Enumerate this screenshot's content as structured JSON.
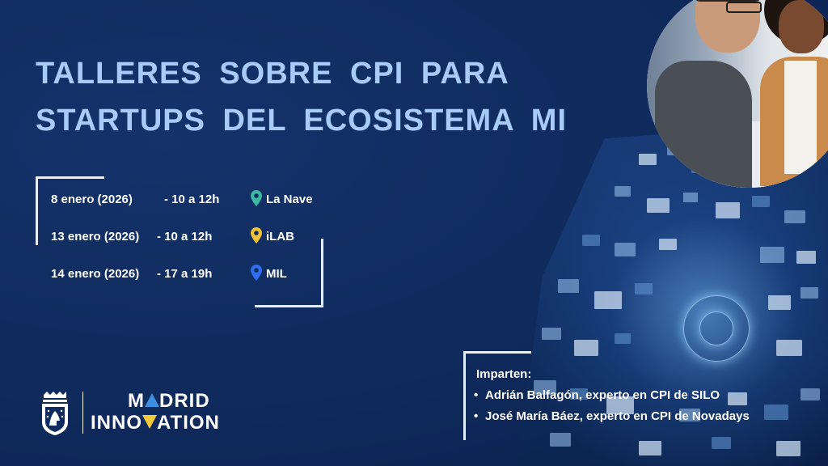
{
  "title": {
    "line1": "TALLERES SOBRE  CPI  PARA",
    "line2": "STARTUPS DEL ECOSISTEMA MI"
  },
  "schedule": [
    {
      "date": "8 enero (2026)",
      "time": "-   10 a 12h",
      "place": "La Nave",
      "pin_color": "#3bb8a0"
    },
    {
      "date": "13 enero (2026)",
      "time": "-  10 a 12h",
      "place": "iLAB",
      "pin_color": "#f0c233"
    },
    {
      "date": "14 enero (2026)",
      "time": "-  17 a 19h",
      "place": "MIL",
      "pin_color": "#2f6ef0"
    }
  ],
  "speakers": {
    "heading": "Imparten:",
    "items": [
      "Adrián Balfagón, experto en CPI de SILO",
      "José María Báez, experto en CPI de Novadays"
    ]
  },
  "logo": {
    "line1_pre": "M",
    "line1_post": "DRID",
    "line2_pre": "INNO",
    "line2_post": "ATION",
    "accent_up": "#3e8fe0",
    "accent_down": "#f3c93b"
  },
  "colors": {
    "background": "#0f2a5c",
    "title": "#a9cbfa"
  },
  "icons": [
    "map-pin-icon",
    "madrid-crest-icon"
  ]
}
